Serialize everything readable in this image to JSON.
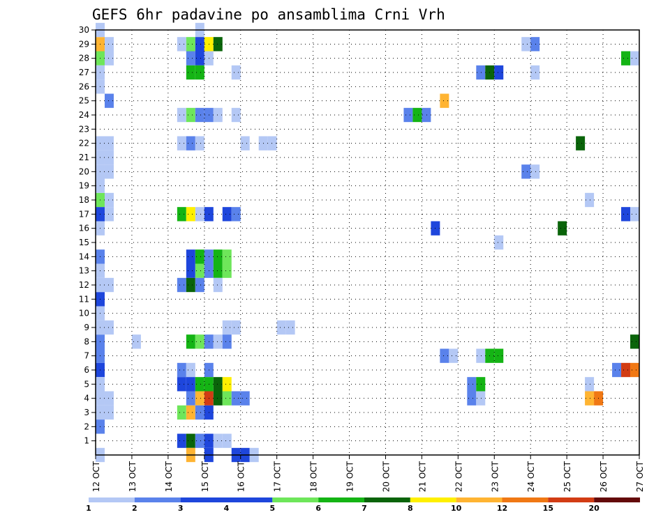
{
  "chart_data": {
    "type": "heatmap",
    "title": "GEFS 6hr padavine po ansamblima Crni Vrh",
    "xlabel": "",
    "ylabel": "",
    "x_ticks": [
      "12 OCT",
      "13 OCT",
      "14 OCT",
      "15 OCT",
      "16 OCT",
      "17 OCT",
      "18 OCT",
      "19 OCT",
      "20 OCT",
      "21 OCT",
      "22 OCT",
      "23 OCT",
      "24 OCT",
      "25 OCT",
      "26 OCT",
      "27 OCT"
    ],
    "x_range_days": [
      12,
      27
    ],
    "y_ticks": [
      "1",
      "2",
      "3",
      "4",
      "5",
      "6",
      "7",
      "8",
      "9",
      "10",
      "11",
      "12",
      "13",
      "14",
      "15",
      "16",
      "17",
      "18",
      "19",
      "20",
      "21",
      "22",
      "23",
      "24",
      "25",
      "26",
      "27",
      "28",
      "29",
      "30"
    ],
    "y_range": [
      0,
      30
    ],
    "grid": true,
    "legend": {
      "placement": "bottom",
      "labels": [
        "1",
        "2",
        "3",
        "4",
        "5",
        "6",
        "7",
        "8",
        "10",
        "12",
        "15",
        "20"
      ],
      "colors": [
        "#b4c8f5",
        "#5a82eb",
        "#1e46dc",
        "#1e46dc",
        "#6ee65a",
        "#14b414",
        "#0a640a",
        "#fff000",
        "#ffb432",
        "#f07814",
        "#d23c14",
        "#640a0a"
      ]
    },
    "bin_colors": [
      "#b4c8f5",
      "#5a82eb",
      "#1e46dc",
      "#6ee65a",
      "#14b414",
      "#0a640a",
      "#fff000",
      "#ffb432",
      "#f07814",
      "#d23c14",
      "#640a0a"
    ],
    "cell_hours": 6,
    "series_note": "cells: [start_day, member, bin_index]",
    "cells": [
      [
        12.0,
        29,
        7
      ],
      [
        12.0,
        28,
        3
      ],
      [
        12.0,
        18,
        3
      ],
      [
        12.0,
        17,
        2
      ],
      [
        12.0,
        11,
        2
      ],
      [
        12.0,
        8,
        1
      ],
      [
        12.0,
        7,
        1
      ],
      [
        12.0,
        6,
        2
      ],
      [
        12.0,
        0,
        0
      ],
      [
        12.0,
        30,
        0
      ],
      [
        12.0,
        27,
        0
      ],
      [
        12.0,
        26,
        0
      ],
      [
        12.0,
        22,
        0
      ],
      [
        12.0,
        21,
        0
      ],
      [
        12.0,
        20,
        0
      ],
      [
        12.0,
        19,
        0
      ],
      [
        12.0,
        16,
        0
      ],
      [
        12.0,
        14,
        1
      ],
      [
        12.0,
        13,
        0
      ],
      [
        12.0,
        12,
        0
      ],
      [
        12.0,
        10,
        0
      ],
      [
        12.0,
        9,
        0
      ],
      [
        12.0,
        5,
        0
      ],
      [
        12.0,
        4,
        0
      ],
      [
        12.0,
        3,
        0
      ],
      [
        12.0,
        2,
        1
      ],
      [
        12.25,
        29,
        0
      ],
      [
        12.25,
        28,
        0
      ],
      [
        12.25,
        25,
        1
      ],
      [
        12.25,
        22,
        0
      ],
      [
        12.25,
        21,
        0
      ],
      [
        12.25,
        20,
        0
      ],
      [
        12.25,
        18,
        0
      ],
      [
        12.25,
        17,
        0
      ],
      [
        12.25,
        12,
        0
      ],
      [
        12.25,
        9,
        0
      ],
      [
        12.25,
        4,
        0
      ],
      [
        12.25,
        3,
        0
      ],
      [
        13.0,
        8,
        0
      ],
      [
        14.25,
        29,
        0
      ],
      [
        14.25,
        24,
        0
      ],
      [
        14.25,
        22,
        0
      ],
      [
        14.25,
        17,
        4
      ],
      [
        14.25,
        12,
        1
      ],
      [
        14.25,
        6,
        1
      ],
      [
        14.25,
        5,
        2
      ],
      [
        14.25,
        3,
        3
      ],
      [
        14.25,
        1,
        2
      ],
      [
        14.5,
        29,
        3
      ],
      [
        14.5,
        28,
        1
      ],
      [
        14.5,
        27,
        4
      ],
      [
        14.5,
        24,
        3
      ],
      [
        14.5,
        22,
        1
      ],
      [
        14.5,
        17,
        6
      ],
      [
        14.5,
        14,
        2
      ],
      [
        14.5,
        13,
        2
      ],
      [
        14.5,
        12,
        5
      ],
      [
        14.5,
        8,
        4
      ],
      [
        14.5,
        6,
        0
      ],
      [
        14.5,
        5,
        2
      ],
      [
        14.5,
        4,
        1
      ],
      [
        14.5,
        3,
        7
      ],
      [
        14.5,
        1,
        5
      ],
      [
        14.5,
        0,
        7
      ],
      [
        14.75,
        30,
        0
      ],
      [
        14.75,
        29,
        2
      ],
      [
        14.75,
        28,
        2
      ],
      [
        14.75,
        27,
        4
      ],
      [
        14.75,
        24,
        1
      ],
      [
        14.75,
        22,
        0
      ],
      [
        14.75,
        17,
        0
      ],
      [
        14.75,
        14,
        4
      ],
      [
        14.75,
        13,
        3
      ],
      [
        14.75,
        12,
        1
      ],
      [
        14.75,
        8,
        3
      ],
      [
        14.75,
        5,
        4
      ],
      [
        14.75,
        4,
        7
      ],
      [
        14.75,
        3,
        1
      ],
      [
        14.75,
        1,
        1
      ],
      [
        15.0,
        29,
        6
      ],
      [
        15.0,
        28,
        0
      ],
      [
        15.0,
        24,
        1
      ],
      [
        15.0,
        17,
        2
      ],
      [
        15.0,
        14,
        1
      ],
      [
        15.0,
        13,
        1
      ],
      [
        15.0,
        8,
        1
      ],
      [
        15.0,
        6,
        1
      ],
      [
        15.0,
        5,
        4
      ],
      [
        15.0,
        4,
        9
      ],
      [
        15.0,
        3,
        2
      ],
      [
        15.0,
        1,
        2
      ],
      [
        15.0,
        0,
        2
      ],
      [
        15.25,
        29,
        5
      ],
      [
        15.25,
        24,
        0
      ],
      [
        15.25,
        14,
        4
      ],
      [
        15.25,
        13,
        4
      ],
      [
        15.25,
        12,
        0
      ],
      [
        15.25,
        8,
        0
      ],
      [
        15.25,
        5,
        5
      ],
      [
        15.25,
        4,
        5
      ],
      [
        15.25,
        1,
        0
      ],
      [
        15.5,
        17,
        2
      ],
      [
        15.5,
        14,
        3
      ],
      [
        15.5,
        13,
        3
      ],
      [
        15.5,
        9,
        0
      ],
      [
        15.5,
        8,
        1
      ],
      [
        15.5,
        5,
        6
      ],
      [
        15.5,
        4,
        3
      ],
      [
        15.5,
        1,
        0
      ],
      [
        15.75,
        27,
        0
      ],
      [
        15.75,
        24,
        0
      ],
      [
        15.75,
        17,
        1
      ],
      [
        15.75,
        9,
        0
      ],
      [
        15.75,
        4,
        1
      ],
      [
        15.75,
        0,
        2
      ],
      [
        16.0,
        22,
        0
      ],
      [
        16.0,
        4,
        1
      ],
      [
        16.0,
        0,
        2
      ],
      [
        16.25,
        0,
        0
      ],
      [
        16.5,
        22,
        0
      ],
      [
        16.75,
        22,
        0
      ],
      [
        17.0,
        9,
        0
      ],
      [
        17.25,
        9,
        0
      ],
      [
        20.5,
        24,
        1
      ],
      [
        20.75,
        24,
        4
      ],
      [
        21.0,
        24,
        1
      ],
      [
        21.25,
        16,
        2
      ],
      [
        21.5,
        25,
        7
      ],
      [
        21.5,
        7,
        1
      ],
      [
        21.75,
        7,
        0
      ],
      [
        22.5,
        27,
        1
      ],
      [
        22.75,
        27,
        5
      ],
      [
        23.0,
        27,
        2
      ],
      [
        22.25,
        5,
        1
      ],
      [
        22.5,
        5,
        4
      ],
      [
        22.25,
        4,
        1
      ],
      [
        22.5,
        4,
        0
      ],
      [
        22.5,
        7,
        0
      ],
      [
        22.75,
        7,
        4
      ],
      [
        23.0,
        7,
        4
      ],
      [
        23.0,
        15,
        0
      ],
      [
        23.75,
        29,
        0
      ],
      [
        24.0,
        29,
        1
      ],
      [
        23.75,
        20,
        1
      ],
      [
        24.0,
        20,
        0
      ],
      [
        24.0,
        27,
        0
      ],
      [
        24.75,
        16,
        5
      ],
      [
        25.25,
        22,
        5
      ],
      [
        25.5,
        18,
        0
      ],
      [
        25.5,
        5,
        0
      ],
      [
        25.5,
        4,
        7
      ],
      [
        25.75,
        4,
        8
      ],
      [
        26.25,
        6,
        1
      ],
      [
        26.5,
        6,
        9
      ],
      [
        26.75,
        6,
        8
      ],
      [
        26.5,
        28,
        4
      ],
      [
        26.75,
        28,
        0
      ],
      [
        26.5,
        17,
        2
      ],
      [
        26.75,
        17,
        0
      ],
      [
        26.75,
        8,
        5
      ]
    ]
  }
}
